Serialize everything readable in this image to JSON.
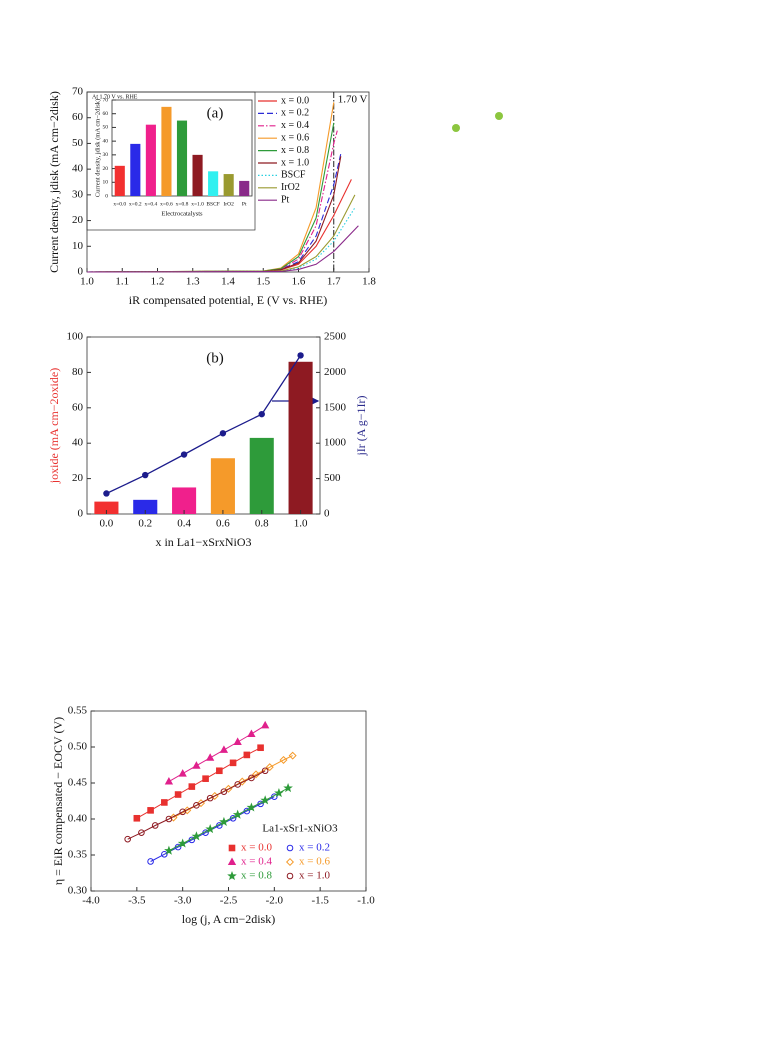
{
  "chart_data": [
    {
      "type": "line",
      "panel": "(a)",
      "xlabel": "iR compensated potential, E (V vs. RHE)",
      "ylabel": "Current density, jdisk (mA cm−2disk)",
      "xlim": [
        1.0,
        1.8
      ],
      "xticks": [
        {
          "value": 1.0,
          "label": "1.0"
        },
        1.1,
        1.2,
        1.3,
        1.4,
        1.5,
        1.6,
        1.7,
        1.8
      ],
      "ylim": [
        0,
        70
      ],
      "yticks": [
        0,
        10,
        20,
        30,
        40,
        50,
        60,
        70
      ],
      "legend": "upper right",
      "annotations": [
        {
          "text": "1.70 V",
          "x": 1.7
        }
      ],
      "series": [
        {
          "name": "x = 0.0",
          "color": "#e8312f",
          "dash": "solid",
          "x": [
            1.0,
            1.5,
            1.55,
            1.6,
            1.65,
            1.7,
            1.75
          ],
          "values": [
            0,
            0.3,
            0.8,
            3,
            10,
            22,
            36
          ]
        },
        {
          "name": "x = 0.2",
          "color": "#2b2bd6",
          "dash": "dashed",
          "x": [
            1.0,
            1.5,
            1.55,
            1.6,
            1.65,
            1.7,
            1.72
          ],
          "values": [
            0,
            0.3,
            1,
            4,
            14,
            34,
            46
          ]
        },
        {
          "name": "x = 0.4",
          "color": "#e0208c",
          "dash": "dashdot",
          "x": [
            1.0,
            1.5,
            1.55,
            1.6,
            1.65,
            1.7,
            1.71
          ],
          "values": [
            0,
            0.3,
            1.2,
            5,
            18,
            50,
            55
          ]
        },
        {
          "name": "x = 0.6",
          "color": "#f59a2a",
          "dash": "solid",
          "x": [
            1.0,
            1.5,
            1.55,
            1.6,
            1.65,
            1.7
          ],
          "values": [
            0,
            0.4,
            1.5,
            7,
            25,
            66
          ]
        },
        {
          "name": "x = 0.8",
          "color": "#2e9b3a",
          "dash": "solid",
          "x": [
            1.0,
            1.5,
            1.55,
            1.6,
            1.65,
            1.7
          ],
          "values": [
            0,
            0.4,
            1.3,
            6,
            21,
            58
          ]
        },
        {
          "name": "x = 1.0",
          "color": "#8e1a22",
          "dash": "solid",
          "x": [
            1.0,
            1.5,
            1.55,
            1.6,
            1.65,
            1.7,
            1.72
          ],
          "values": [
            0,
            0.3,
            0.9,
            3.5,
            12,
            30,
            45
          ]
        },
        {
          "name": "BSCF",
          "color": "#2ad0e0",
          "dash": "dotted",
          "x": [
            1.0,
            1.55,
            1.6,
            1.65,
            1.7,
            1.76
          ],
          "values": [
            0,
            0.3,
            1.5,
            5,
            12,
            25
          ]
        },
        {
          "name": "IrO2",
          "color": "#9a9a30",
          "dash": "solid",
          "x": [
            1.0,
            1.55,
            1.6,
            1.65,
            1.7,
            1.76
          ],
          "values": [
            0,
            0.4,
            2,
            6,
            14,
            30
          ]
        },
        {
          "name": "Pt",
          "color": "#8a2a8a",
          "dash": "solid",
          "x": [
            1.0,
            1.55,
            1.6,
            1.65,
            1.7,
            1.77
          ],
          "values": [
            0,
            0.2,
            1,
            3,
            8,
            18
          ]
        }
      ]
    },
    {
      "type": "bar",
      "title": "At 1.70 V vs. RHE",
      "xlabel": "Electrocatalysts",
      "ylabel": "Current density, jdisk (mA cm−2disk)",
      "categories": [
        "x=0.0",
        "x=0.2",
        "x=0.4",
        "x=0.6",
        "x=0.8",
        "x=1.0",
        "BSCF",
        "IrO2",
        "Pt"
      ],
      "values": [
        22,
        38,
        52,
        65,
        55,
        30,
        18,
        16,
        11
      ],
      "colors": [
        "#f23030",
        "#2a2ae8",
        "#f0208c",
        "#f59a2a",
        "#2e9b3a",
        "#8e1a22",
        "#30f0f0",
        "#9a9a30",
        "#8a2a8a"
      ],
      "ylim": [
        0,
        70
      ],
      "yticks": [
        0,
        10,
        20,
        30,
        40,
        50,
        60,
        70
      ]
    },
    {
      "type": "bar",
      "panel": "(b)",
      "xlabel": "x in La1−xSrxNiO3",
      "ylabel": "joxide (mA cm−2oxide)",
      "ylabel_color": "#e8312f",
      "y2label": "jIr (A g−1Ir)",
      "y2label_color": "#2b2b8c",
      "categories": [
        "0.0",
        "0.2",
        "0.4",
        "0.6",
        "0.8",
        "1.0"
      ],
      "values": [
        7,
        8,
        15,
        31.5,
        43,
        86
      ],
      "colors": [
        "#f23030",
        "#2a2ae8",
        "#f0208c",
        "#f59a2a",
        "#2e9b3a",
        "#8e1a22"
      ],
      "ylim": [
        0,
        100
      ],
      "yticks": [
        0,
        20,
        40,
        60,
        80,
        100
      ],
      "y2lim": [
        0,
        2500
      ],
      "y2ticks": [
        0,
        500,
        1000,
        1500,
        2000,
        2500
      ],
      "series": [
        {
          "color": "#1c1c8c",
          "axis": "y2",
          "values": [
            290,
            550,
            840,
            1140,
            1410,
            2240
          ]
        }
      ]
    },
    {
      "type": "scatter",
      "legend_title": "La1-xSr1-xNiO3",
      "xlabel": "log (j, A cm−2disk)",
      "ylabel": "η = EiR compensated − EOCV (V)",
      "xlim": [
        -4.0,
        -1.0
      ],
      "xticks": [
        {
          "value": -4.0,
          "label": "-4.0"
        },
        -3.5,
        {
          "value": -3.0,
          "label": "-3.0"
        },
        -2.5,
        {
          "value": -2.0,
          "label": "-2.0"
        },
        -1.5,
        {
          "value": -1.0,
          "label": "-1.0"
        }
      ],
      "ylim": [
        0.3,
        0.55
      ],
      "yticks": [
        {
          "value": 0.3,
          "label": "0.30"
        },
        0.35,
        {
          "value": 0.4,
          "label": "0.40"
        },
        0.45,
        {
          "value": 0.5,
          "label": "0.50"
        },
        0.55
      ],
      "series": [
        {
          "name": "x = 0.0",
          "color": "#e8312f",
          "marker": "square",
          "filled": true,
          "x": [
            -3.5,
            -3.35,
            -3.2,
            -3.05,
            -2.9,
            -2.75,
            -2.6,
            -2.45,
            -2.3,
            -2.15
          ],
          "values": [
            0.401,
            0.412,
            0.423,
            0.434,
            0.445,
            0.456,
            0.467,
            0.478,
            0.489,
            0.499
          ]
        },
        {
          "name": "x = 0.2",
          "color": "#2a2ae8",
          "marker": "circle",
          "filled": false,
          "x": [
            -3.35,
            -3.2,
            -3.05,
            -2.9,
            -2.75,
            -2.6,
            -2.45,
            -2.3,
            -2.15,
            -2.0
          ],
          "values": [
            0.341,
            0.351,
            0.361,
            0.371,
            0.381,
            0.391,
            0.401,
            0.411,
            0.421,
            0.431
          ]
        },
        {
          "name": "x = 0.4",
          "color": "#e0208c",
          "marker": "triangle",
          "filled": true,
          "x": [
            -3.15,
            -3.0,
            -2.85,
            -2.7,
            -2.55,
            -2.4,
            -2.25,
            -2.1
          ],
          "values": [
            0.452,
            0.463,
            0.474,
            0.485,
            0.496,
            0.507,
            0.518,
            0.53
          ]
        },
        {
          "name": "x = 0.6",
          "color": "#f59a2a",
          "marker": "diamond",
          "filled": false,
          "x": [
            -3.1,
            -2.95,
            -2.8,
            -2.65,
            -2.5,
            -2.35,
            -2.2,
            -2.05,
            -1.9,
            -1.8
          ],
          "values": [
            0.402,
            0.412,
            0.422,
            0.432,
            0.442,
            0.452,
            0.462,
            0.472,
            0.482,
            0.488
          ]
        },
        {
          "name": "x = 0.8",
          "color": "#2e9b3a",
          "marker": "star",
          "filled": true,
          "x": [
            -3.15,
            -3.0,
            -2.85,
            -2.7,
            -2.55,
            -2.4,
            -2.25,
            -2.1,
            -1.95,
            -1.85
          ],
          "values": [
            0.356,
            0.366,
            0.376,
            0.386,
            0.396,
            0.406,
            0.416,
            0.426,
            0.436,
            0.443
          ]
        },
        {
          "name": "x = 1.0",
          "color": "#8e1a22",
          "marker": "circle",
          "filled": false,
          "x": [
            -3.6,
            -3.45,
            -3.3,
            -3.15,
            -3.0,
            -2.85,
            -2.7,
            -2.55,
            -2.4,
            -2.25,
            -2.1
          ],
          "values": [
            0.372,
            0.381,
            0.391,
            0.4,
            0.41,
            0.419,
            0.429,
            0.438,
            0.448,
            0.457,
            0.467
          ]
        }
      ]
    }
  ]
}
